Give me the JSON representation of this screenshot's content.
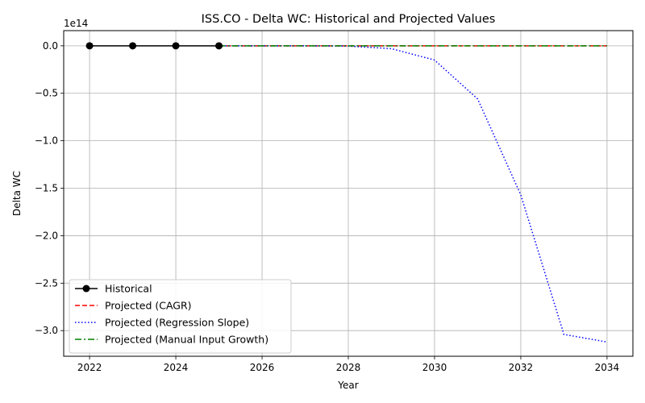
{
  "chart_data": {
    "type": "line",
    "title": "ISS.CO - Delta WC: Historical and Projected Values",
    "xlabel": "Year",
    "ylabel": "Delta WC",
    "y_offset_label": "1e14",
    "xlim": [
      2021.4,
      2034.6
    ],
    "ylim": [
      -3.27,
      0.16
    ],
    "y_scale_factor": 100000000000000.0,
    "x_ticks": [
      2022,
      2024,
      2026,
      2028,
      2030,
      2032,
      2034
    ],
    "y_ticks": [
      0.0,
      -0.5,
      -1.0,
      -1.5,
      -2.0,
      -2.5,
      -3.0
    ],
    "y_tick_labels": [
      "0.0",
      "−0.5",
      "−1.0",
      "−1.5",
      "−2.0",
      "−2.5",
      "−3.0"
    ],
    "grid": true,
    "legend_position": "lower-left",
    "series": [
      {
        "name": "Historical",
        "color": "#000000",
        "style": "solid-marker",
        "x": [
          2022,
          2023,
          2024,
          2025
        ],
        "y": [
          0.0,
          0.0,
          0.0,
          0.0
        ]
      },
      {
        "name": "Projected (CAGR)",
        "color": "#ff0000",
        "style": "dashed",
        "x": [
          2025,
          2026,
          2027,
          2028,
          2029,
          2030,
          2031,
          2032,
          2033,
          2034
        ],
        "y": [
          0.0,
          0.0,
          0.0,
          0.0,
          0.0,
          0.0,
          0.0,
          0.0,
          0.0,
          0.0
        ]
      },
      {
        "name": "Projected (Regression Slope)",
        "color": "#0000ff",
        "style": "dotted",
        "x": [
          2025,
          2026,
          2027,
          2028,
          2029,
          2030,
          2031,
          2032,
          2033,
          2034
        ],
        "y": [
          0.0,
          0.0,
          0.0,
          -0.003,
          -0.03,
          -0.15,
          -0.56,
          -1.57,
          -3.04,
          -3.12
        ]
      },
      {
        "name": "Projected (Manual Input Growth)",
        "color": "#008000",
        "style": "dashdot",
        "x": [
          2025,
          2026,
          2027,
          2028,
          2029,
          2030,
          2031,
          2032,
          2033,
          2034
        ],
        "y": [
          0.0,
          0.0,
          0.0,
          0.0,
          0.0,
          0.0,
          0.0,
          0.0,
          0.0,
          0.0
        ]
      }
    ]
  }
}
